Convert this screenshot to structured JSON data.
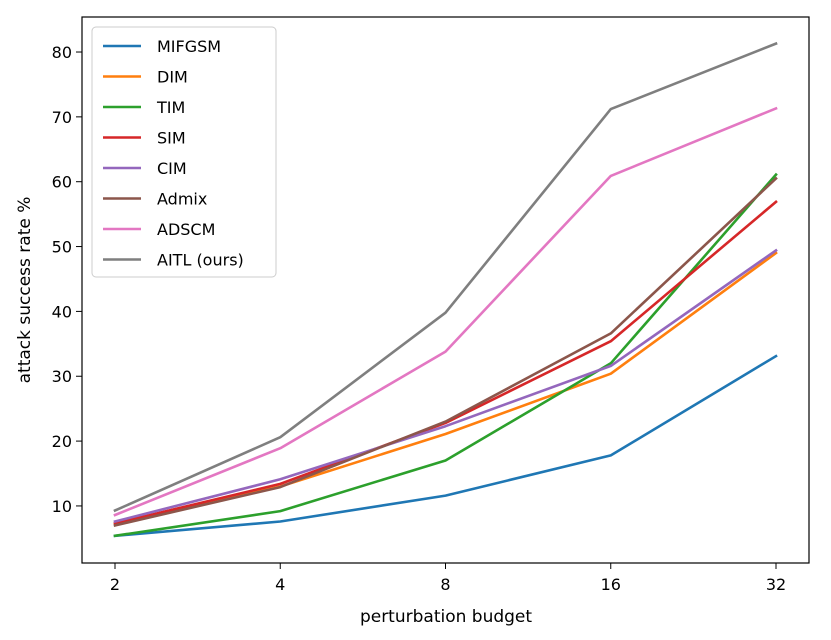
{
  "chart_data": {
    "type": "line",
    "title": "",
    "xlabel": "perturbation budget",
    "ylabel": "attack success rate %",
    "categories": [
      "2",
      "4",
      "8",
      "16",
      "32"
    ],
    "yticks": [
      10,
      20,
      30,
      40,
      50,
      60,
      70,
      80
    ],
    "ylim": [
      1.2,
      85.4
    ],
    "grid": false,
    "legend_position": "top-left",
    "series": [
      {
        "name": "MIFGSM",
        "color": "#1f77b4",
        "values": [
          5.4,
          7.6,
          11.6,
          17.8,
          33.1
        ]
      },
      {
        "name": "DIM",
        "color": "#ff7f0e",
        "values": [
          7.3,
          13.0,
          21.1,
          30.4,
          49.0
        ]
      },
      {
        "name": "TIM",
        "color": "#2ca02c",
        "values": [
          5.4,
          9.2,
          17.0,
          32.0,
          61.1
        ]
      },
      {
        "name": "SIM",
        "color": "#d62728",
        "values": [
          7.3,
          13.4,
          22.8,
          35.4,
          56.9
        ]
      },
      {
        "name": "CIM",
        "color": "#9467bd",
        "values": [
          7.6,
          14.1,
          22.3,
          31.6,
          49.4
        ]
      },
      {
        "name": "Admix",
        "color": "#8c564b",
        "values": [
          7.0,
          12.9,
          23.0,
          36.6,
          60.5
        ]
      },
      {
        "name": "ADSCM",
        "color": "#e377c2",
        "values": [
          8.6,
          18.9,
          33.8,
          60.9,
          71.3
        ]
      },
      {
        "name": "AITL (ours)",
        "color": "#7f7f7f",
        "values": [
          9.3,
          20.6,
          39.8,
          71.2,
          81.3
        ]
      }
    ]
  }
}
